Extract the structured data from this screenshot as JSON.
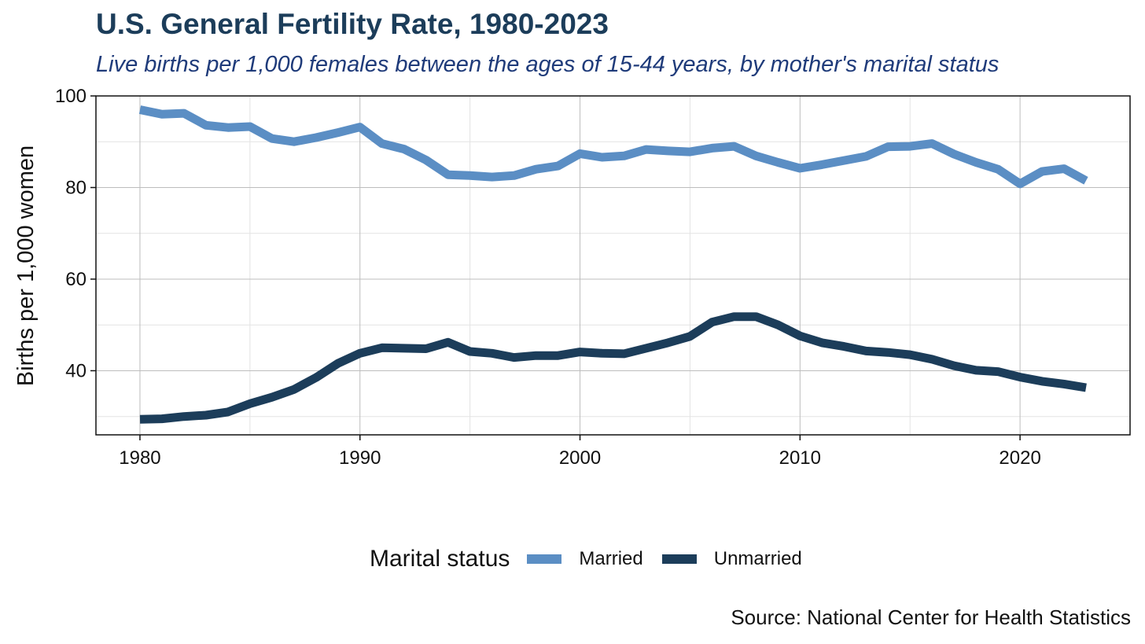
{
  "title": "U.S. General Fertility Rate, 1980-2023",
  "subtitle": "Live births per 1,000 females between the ages of 15-44 years, by mother's marital status",
  "source": "Source: National Center for Health Statistics",
  "chart_data": {
    "type": "line",
    "title": "U.S. General Fertility Rate, 1980-2023",
    "subtitle": "Live births per 1,000 females between the ages of 15-44 years, by mother's marital status",
    "xlabel": "",
    "ylabel": "Births per 1,000 women",
    "xlim": [
      1978,
      2025
    ],
    "ylim": [
      26,
      100
    ],
    "xticks": [
      1980,
      1990,
      2000,
      2010,
      2020
    ],
    "yticks": [
      40,
      60,
      80,
      100
    ],
    "grid": true,
    "legend_title": "Marital status",
    "legend_position": "bottom",
    "x": [
      1980,
      1981,
      1982,
      1983,
      1984,
      1985,
      1986,
      1987,
      1988,
      1989,
      1990,
      1991,
      1992,
      1993,
      1994,
      1995,
      1996,
      1997,
      1998,
      1999,
      2000,
      2001,
      2002,
      2003,
      2004,
      2005,
      2006,
      2007,
      2008,
      2009,
      2010,
      2011,
      2012,
      2013,
      2014,
      2015,
      2016,
      2017,
      2018,
      2019,
      2020,
      2021,
      2022,
      2023
    ],
    "series": [
      {
        "name": "Married",
        "color": "#5b8ec4",
        "values": [
          97.0,
          96.0,
          96.2,
          93.6,
          93.1,
          93.3,
          90.7,
          90.0,
          90.9,
          92.0,
          93.2,
          89.6,
          88.4,
          86.0,
          82.8,
          82.6,
          82.3,
          82.6,
          84.0,
          84.7,
          87.4,
          86.6,
          86.9,
          88.3,
          88.0,
          87.8,
          88.6,
          89.0,
          86.9,
          85.5,
          84.2,
          85.0,
          85.9,
          86.8,
          88.9,
          89.0,
          89.6,
          87.3,
          85.5,
          84.0,
          80.8,
          83.5,
          84.1,
          81.5
        ]
      },
      {
        "name": "Unmarried",
        "color": "#1c3d5a",
        "values": [
          29.4,
          29.5,
          30.0,
          30.3,
          31.0,
          32.8,
          34.2,
          35.9,
          38.5,
          41.6,
          43.8,
          45.0,
          44.9,
          44.8,
          46.2,
          44.2,
          43.8,
          42.9,
          43.3,
          43.3,
          44.1,
          43.8,
          43.7,
          44.9,
          46.1,
          47.5,
          50.6,
          51.8,
          51.8,
          50.0,
          47.6,
          46.1,
          45.3,
          44.3,
          44.0,
          43.5,
          42.5,
          41.1,
          40.1,
          39.8,
          38.6,
          37.7,
          37.1,
          36.3
        ]
      }
    ]
  }
}
